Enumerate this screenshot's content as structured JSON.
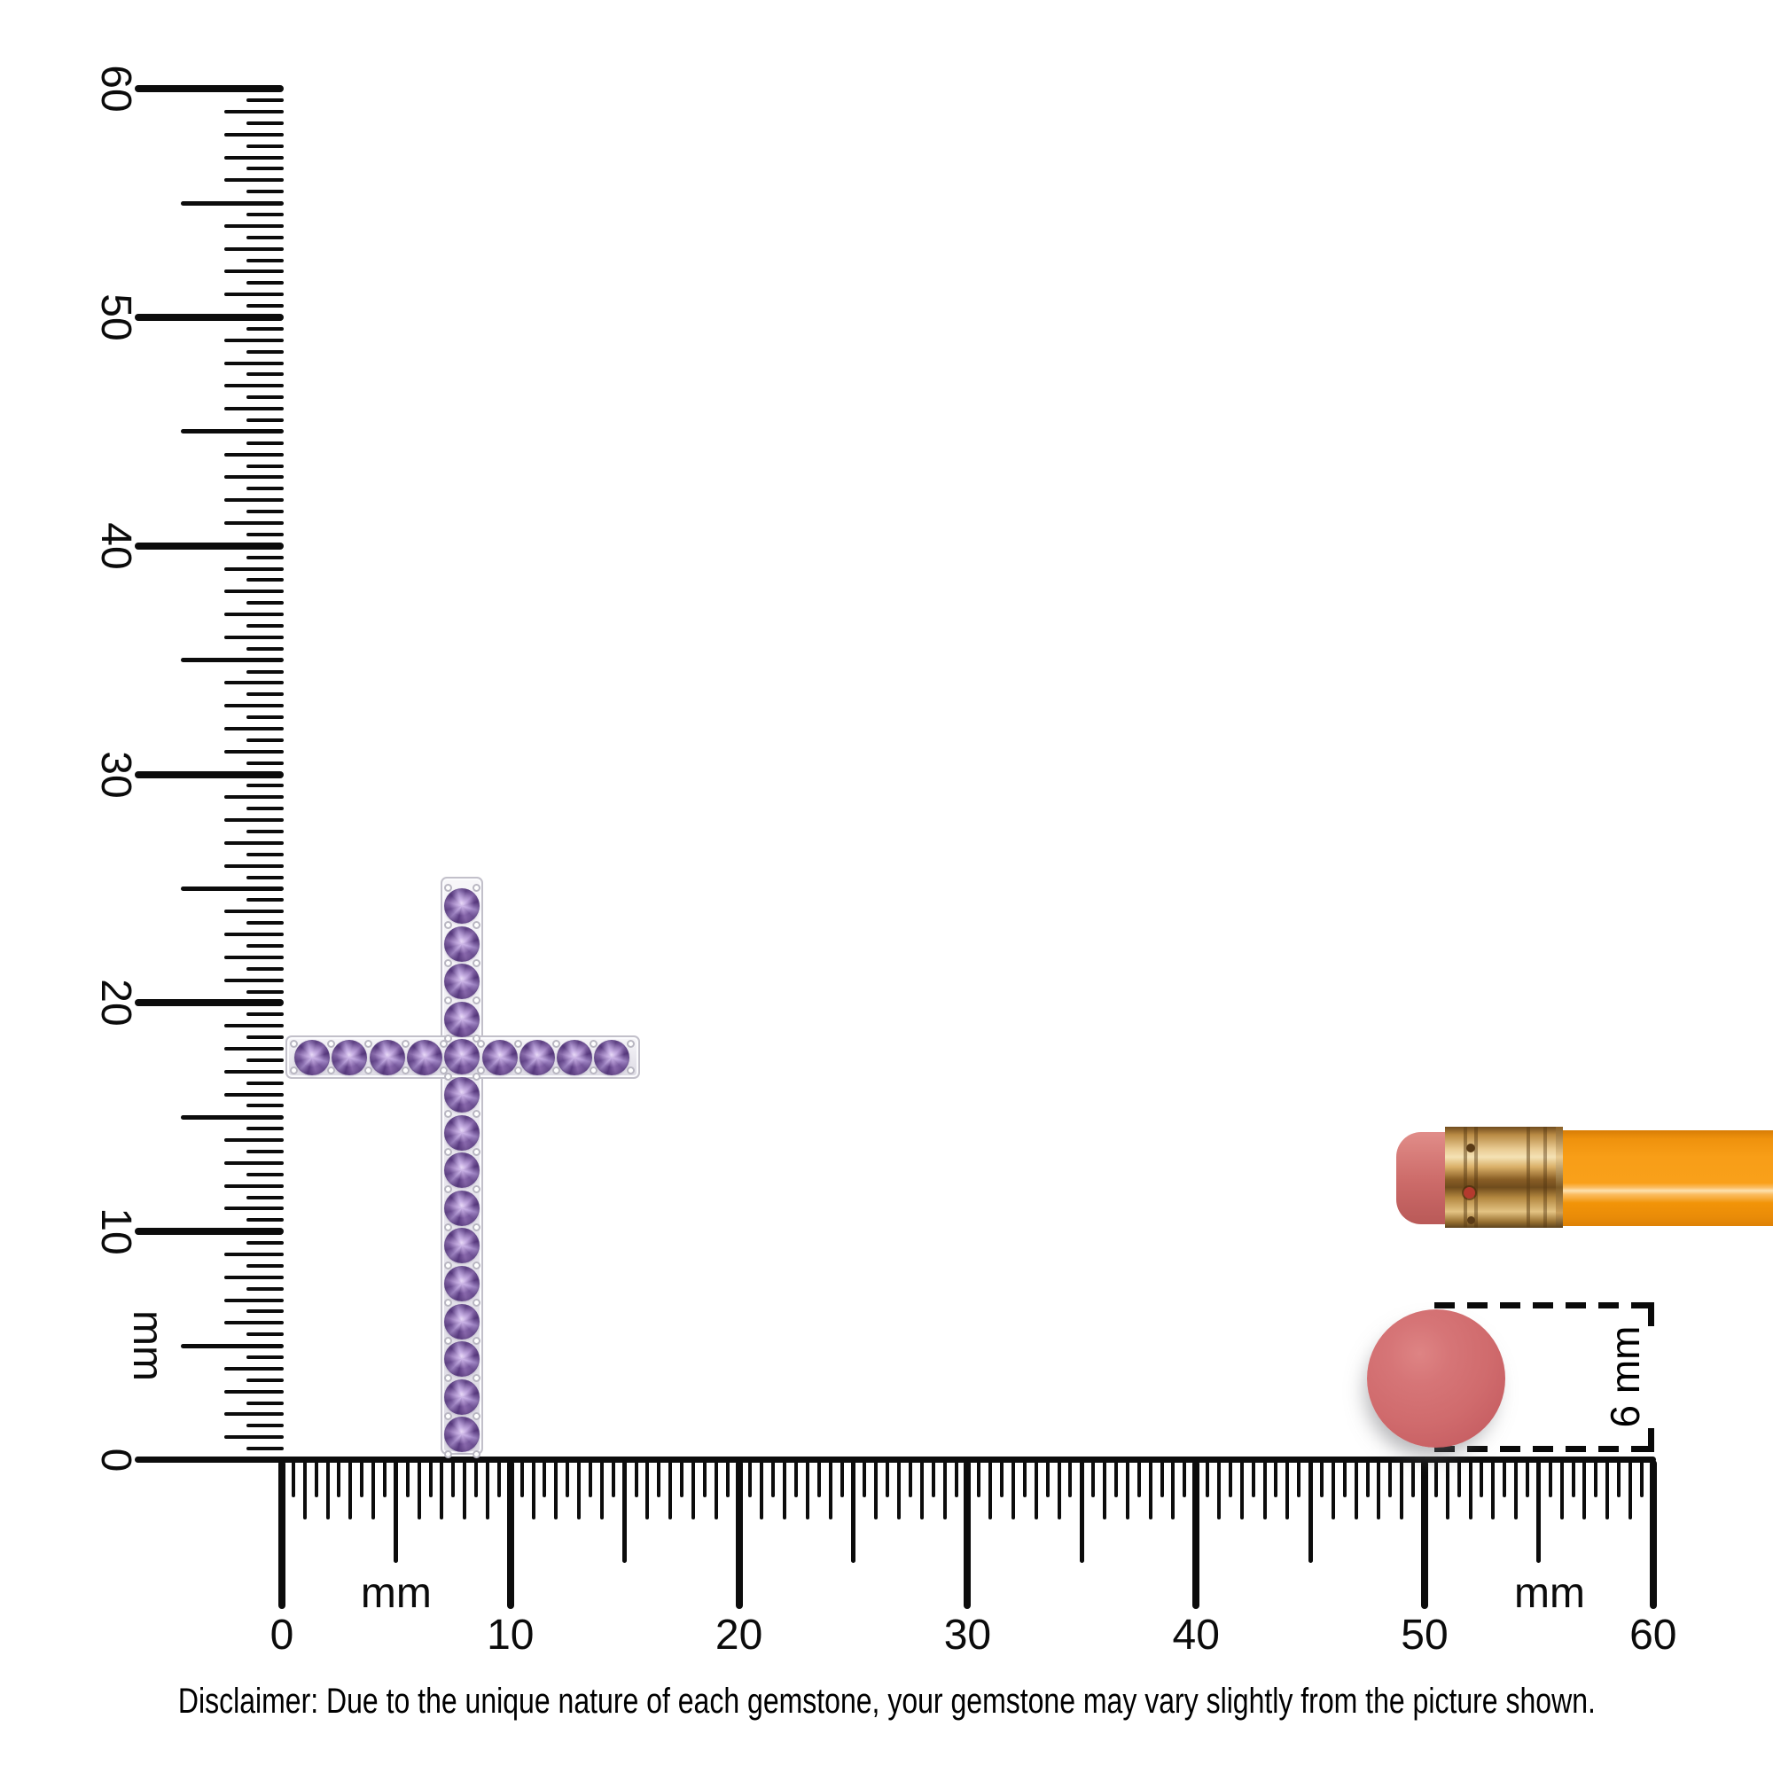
{
  "rulers": {
    "unit": "mm",
    "tick_step_mm": 0.5,
    "vertical": {
      "labels": [
        "60",
        "50",
        "40",
        "30",
        "20",
        "10",
        "0"
      ],
      "unit_label": "mm"
    },
    "horizontal": {
      "labels": [
        "0",
        "10",
        "20",
        "30",
        "40",
        "50",
        "60"
      ],
      "unit_label_left": "mm",
      "unit_label_right": "mm"
    }
  },
  "pendant": {
    "kind": "gemstone cross pendant",
    "vertical_stone_count": 15,
    "horizontal_stone_count": 9,
    "stone_color": "#8f6fb4",
    "stone_color_dark": "#5e3f85",
    "stone_color_light": "#cdb6e2",
    "frame_color": "#efedf3",
    "width_mm": 15.5,
    "height_mm": 25.3
  },
  "size_reference": {
    "gem_label": "6 mm",
    "gem_color": "#d06b6d",
    "pencil": {
      "eraser_color": "#cf6e6c",
      "ferrule_color": "#c99a55",
      "body_color": "#f89d16"
    }
  },
  "disclaimer": "Disclaimer: Due to the unique nature of each gemstone, your gemstone may vary slightly from the picture shown."
}
